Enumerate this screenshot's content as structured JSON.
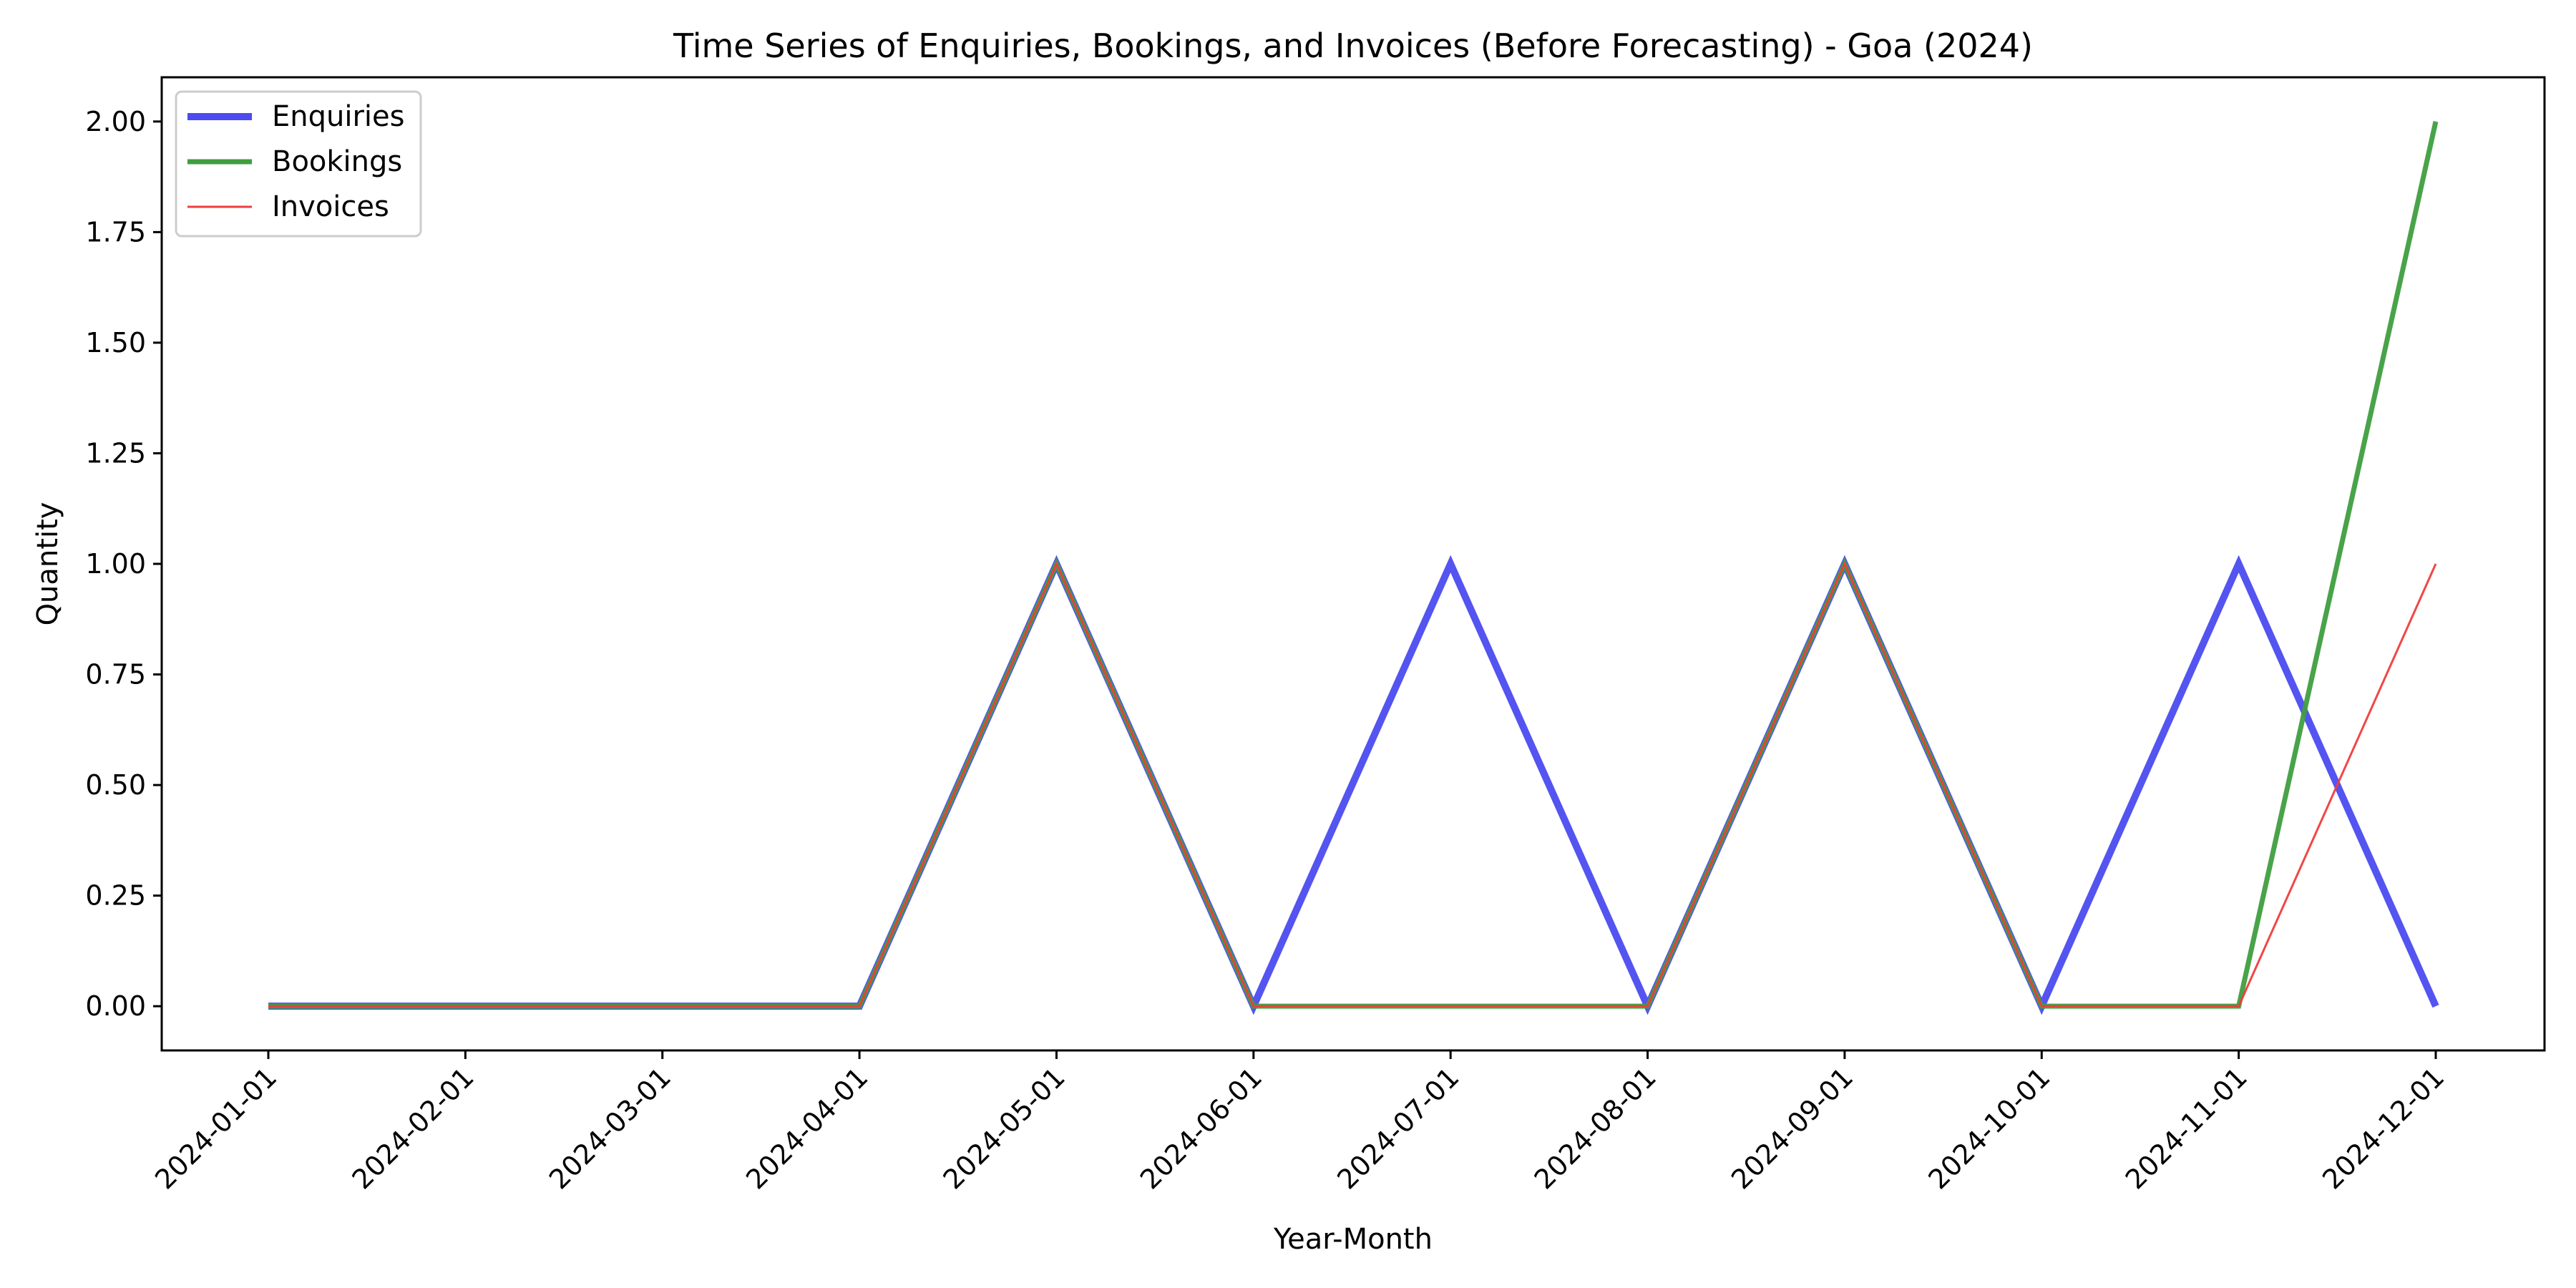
{
  "chart_data": {
    "type": "line",
    "title": "Time Series of Enquiries, Bookings, and Invoices (Before Forecasting) - Goa (2024)",
    "xlabel": "Year-Month",
    "ylabel": "Quantity",
    "x": [
      "2024-01-01",
      "2024-02-01",
      "2024-03-01",
      "2024-04-01",
      "2024-05-01",
      "2024-06-01",
      "2024-07-01",
      "2024-08-01",
      "2024-09-01",
      "2024-10-01",
      "2024-11-01",
      "2024-12-01"
    ],
    "yticks": [
      "0.00",
      "0.25",
      "0.50",
      "0.75",
      "1.00",
      "1.25",
      "1.50",
      "1.75",
      "2.00"
    ],
    "ylim": [
      -0.1,
      2.1
    ],
    "grid": false,
    "legend_position": "top-left",
    "series": [
      {
        "name": "Enquiries",
        "color": "#4b4bf0",
        "values": [
          0,
          0,
          0,
          0,
          1,
          0,
          1,
          0,
          1,
          0,
          1,
          0
        ]
      },
      {
        "name": "Bookings",
        "color": "#3f9e3f",
        "values": [
          0,
          0,
          0,
          0,
          1,
          0,
          0,
          0,
          1,
          0,
          0,
          2
        ]
      },
      {
        "name": "Invoices",
        "color": "#f03c3c",
        "values": [
          0,
          0,
          0,
          0,
          1,
          0,
          0,
          0,
          1,
          0,
          0,
          1
        ]
      }
    ]
  }
}
